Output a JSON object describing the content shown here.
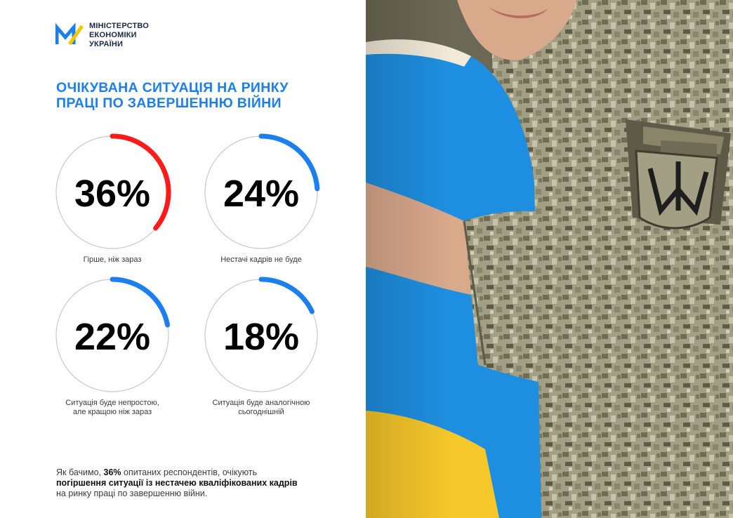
{
  "logo": {
    "lines": [
      "МІНІСТЕРСТВО",
      "ЕКОНОМІКИ",
      "УКРАЇНИ"
    ],
    "mark_colors": {
      "blue": "#1a7ff0",
      "yellow": "#f7c600"
    }
  },
  "title": {
    "line1": "ОЧІКУВАНА СИТУАЦІЯ НА РИНКУ",
    "line2": "ПРАЦІ ПО ЗАВЕРШЕННЮ ВІЙНИ"
  },
  "chart_data": {
    "type": "pie",
    "categories": [
      "Гірше, ніж зараз",
      "Нестачі кадрів не буде",
      "Ситуація буде непростою, але кращою ніж зараз",
      "Ситуація буде аналогічною сьогоднішній"
    ],
    "values": [
      36,
      24,
      22,
      18
    ],
    "value_labels": [
      "36%",
      "24%",
      "22%",
      "18%"
    ],
    "caption_lines": [
      [
        "Гірше, ніж зараз"
      ],
      [
        "Нестачі кадрів не буде"
      ],
      [
        "Ситуація буде непростою,",
        "але кращою ніж зараз"
      ],
      [
        "Ситуація буде аналогічною",
        "сьогоднішній"
      ]
    ],
    "colors": [
      "#ff1a1a",
      "#1a7ff0",
      "#1a7ff0",
      "#1a7ff0"
    ],
    "ring_color": "#c9c9c9"
  },
  "footer": {
    "t1": "Як бачимо, ",
    "b1": "36%",
    "t2": " опитаних респондентів, очікують ",
    "b2": "погіршення ситуації із нестачею кваліфікованих кадрів",
    "t3": " на ринку праці по завершенню війни."
  },
  "photo": {
    "colors": {
      "blue": "#1e8fe0",
      "yellow": "#f5c72a",
      "camo": "#8f8a6f",
      "skin": "#d9a98c"
    }
  }
}
